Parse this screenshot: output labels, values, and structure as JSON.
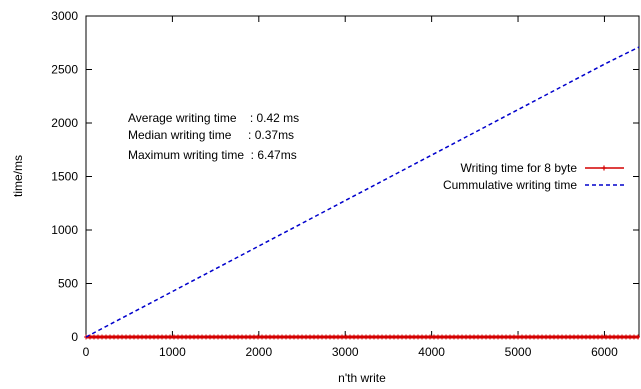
{
  "chart_data": {
    "type": "line",
    "xlabel": "n'th write",
    "ylabel": "time/ms",
    "xlim": [
      0,
      6400
    ],
    "ylim": [
      0,
      3000
    ],
    "x_ticks": [
      0,
      1000,
      2000,
      3000,
      4000,
      5000,
      6000
    ],
    "y_ticks": [
      0,
      500,
      1000,
      1500,
      2000,
      2500,
      3000
    ],
    "grid": false,
    "legend_position": "right",
    "annotations": [
      "Average writing time    : 0.42 ms",
      "Median writing time     : 0.37ms",
      "Maximum writing time  : 6.47ms"
    ],
    "series": [
      {
        "name": "Writing time for 8 byte",
        "style": "solid-with-markers",
        "color": "#d40000",
        "x": [
          0,
          1000,
          2000,
          3000,
          4000,
          5000,
          6000,
          6400
        ],
        "y": [
          0.42,
          0.42,
          0.42,
          0.42,
          0.42,
          0.42,
          0.42,
          0.42
        ]
      },
      {
        "name": "Cummulative writing time",
        "style": "dashed",
        "color": "#0000cc",
        "x": [
          0,
          1000,
          2000,
          3000,
          4000,
          5000,
          6000,
          6400
        ],
        "y": [
          0,
          425,
          850,
          1275,
          1700,
          2125,
          2550,
          2710
        ]
      }
    ]
  }
}
